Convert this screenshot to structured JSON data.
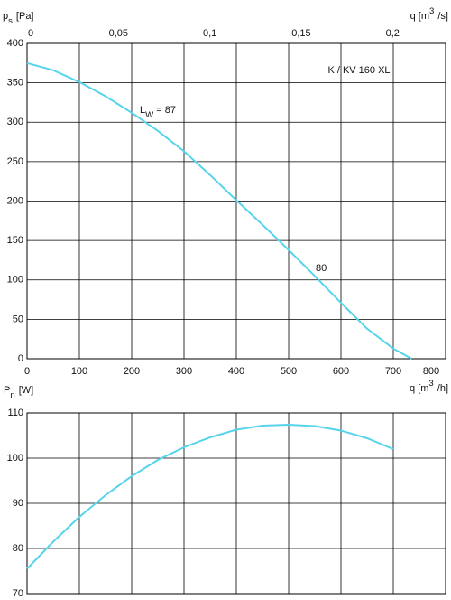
{
  "chart_data": [
    {
      "type": "line",
      "title": "K / KV 160 XL",
      "y_label": {
        "text": "p",
        "sub": "s",
        "unit": "[Pa]"
      },
      "x_label": {
        "text": "q [m",
        "sup": "3",
        "unit": "/h]"
      },
      "x2_label": {
        "text": "q [m",
        "sup": "3",
        "unit": "/s]"
      },
      "annotations": [
        {
          "text": "L",
          "sub": "W",
          "rest": " = 87"
        },
        {
          "text": "80"
        }
      ],
      "x": [
        0,
        50,
        100,
        150,
        200,
        250,
        300,
        350,
        400,
        450,
        500,
        550,
        600,
        650,
        700,
        735
      ],
      "series": [
        {
          "name": "ps",
          "color": "#55d4ec",
          "values": [
            375,
            366,
            351,
            333,
            312,
            289,
            263,
            233,
            201,
            170,
            138,
            105,
            71,
            38,
            13,
            0
          ]
        }
      ],
      "xlim": [
        0,
        800
      ],
      "xticks": [
        0,
        100,
        200,
        300,
        400,
        500,
        600,
        700,
        800
      ],
      "x2lim": [
        0,
        0.229
      ],
      "x2ticks": [
        0,
        {
          "value": 0.05,
          "label": "0,05"
        },
        {
          "value": 0.1,
          "label": "0,1"
        },
        {
          "value": 0.15,
          "label": "0,15"
        },
        {
          "value": 0.2,
          "label": "0,2"
        }
      ],
      "ylim": [
        0,
        400
      ],
      "yticks": [
        0,
        50,
        100,
        150,
        200,
        250,
        300,
        350,
        400
      ],
      "grid": true
    },
    {
      "type": "line",
      "y_label": {
        "text": "P",
        "sub": "n",
        "unit": "[W]"
      },
      "x": [
        0,
        50,
        100,
        150,
        200,
        250,
        300,
        350,
        400,
        450,
        500,
        550,
        600,
        650,
        700
      ],
      "series": [
        {
          "name": "Pn",
          "color": "#55d4ec",
          "values": [
            75.5,
            81.5,
            87,
            91.8,
            96,
            99.6,
            102.4,
            104.6,
            106.3,
            107.2,
            107.4,
            107.1,
            106.1,
            104.4,
            102
          ]
        }
      ],
      "xlim": [
        0,
        800
      ],
      "ylim": [
        70,
        110
      ],
      "yticks": [
        70,
        80,
        90,
        100,
        110
      ],
      "grid": true
    }
  ]
}
